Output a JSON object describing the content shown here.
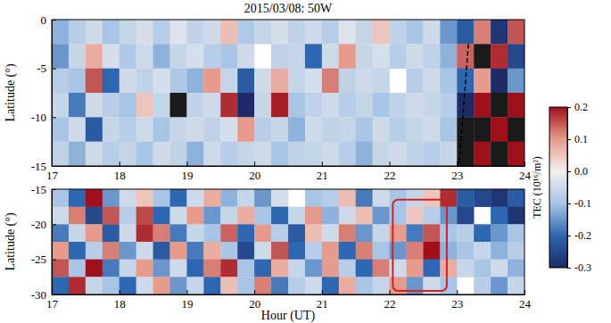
{
  "chart_data": [
    {
      "type": "heatmap",
      "title": "2015/03/08: 50W",
      "ylabel": "Latitude (°)",
      "xlim": [
        17,
        24
      ],
      "ylim": [
        -15,
        0
      ],
      "xticks": [
        17,
        18,
        19,
        20,
        21,
        22,
        23,
        24
      ],
      "yticks": [
        0,
        -5,
        -10,
        -15
      ],
      "x": [
        17.125,
        17.375,
        17.625,
        17.875,
        18.125,
        18.375,
        18.625,
        18.875,
        19.125,
        19.375,
        19.625,
        19.875,
        20.125,
        20.375,
        20.625,
        20.875,
        21.125,
        21.375,
        21.625,
        21.875,
        22.125,
        22.375,
        22.625,
        22.875,
        23.125,
        23.375,
        23.625,
        23.875
      ],
      "y": [
        -1.25,
        -3.75,
        -6.25,
        -8.75,
        -11.25,
        -13.75
      ],
      "values": [
        [
          -0.12,
          -0.08,
          -0.05,
          -0.1,
          -0.06,
          -0.04,
          -0.08,
          -0.03,
          -0.07,
          -0.05,
          0.06,
          -0.09,
          -0.06,
          -0.04,
          -0.07,
          -0.05,
          -0.08,
          -0.03,
          -0.06,
          0.05,
          -0.07,
          -0.1,
          -0.05,
          -0.15,
          -0.22,
          0.12,
          -0.28,
          0.15
        ],
        [
          -0.15,
          -0.06,
          0.08,
          -0.04,
          -0.09,
          -0.05,
          -0.12,
          -0.06,
          -0.04,
          -0.08,
          -0.1,
          -0.05,
          null,
          -0.07,
          -0.06,
          -0.2,
          -0.05,
          0.1,
          -0.06,
          -0.04,
          -0.08,
          -0.05,
          -0.07,
          -0.12,
          0.14,
          -0.35,
          0.18,
          -0.25
        ],
        [
          -0.08,
          -0.1,
          0.15,
          -0.2,
          -0.05,
          -0.07,
          -0.04,
          -0.09,
          -0.12,
          0.1,
          -0.06,
          -0.22,
          -0.05,
          0.08,
          -0.06,
          -0.04,
          0.12,
          -0.07,
          -0.05,
          -0.06,
          null,
          -0.08,
          -0.05,
          -0.1,
          -0.2,
          0.1,
          -0.3,
          -0.15
        ],
        [
          -0.06,
          -0.18,
          -0.05,
          -0.08,
          -0.1,
          0.05,
          -0.06,
          -0.35,
          -0.07,
          -0.05,
          0.18,
          -0.3,
          -0.06,
          0.19,
          -0.1,
          -0.07,
          -0.05,
          -0.08,
          -0.06,
          -0.1,
          -0.07,
          -0.05,
          -0.06,
          -0.08,
          -0.3,
          0.2,
          0.25,
          0.2
        ],
        [
          -0.1,
          -0.05,
          -0.22,
          -0.06,
          -0.08,
          -0.05,
          -0.1,
          -0.06,
          -0.05,
          -0.07,
          -0.04,
          0.1,
          -0.08,
          -0.06,
          -0.12,
          -0.05,
          -0.07,
          -0.06,
          -0.1,
          -0.05,
          -0.08,
          -0.06,
          -0.05,
          -0.1,
          -0.35,
          0.25,
          0.2,
          0.25
        ],
        [
          -0.07,
          -0.12,
          -0.05,
          -0.08,
          -0.06,
          -0.1,
          -0.05,
          -0.07,
          -0.12,
          -0.05,
          -0.08,
          -0.06,
          -0.05,
          -0.1,
          -0.07,
          -0.06,
          -0.05,
          -0.08,
          -0.12,
          -0.06,
          -0.05,
          -0.07,
          -0.08,
          -0.06,
          0.25,
          0.2,
          -0.35,
          0.2
        ]
      ],
      "colorbar": {
        "label": "TEC (10¹⁶/m²)",
        "range": [
          -0.3,
          0.2
        ],
        "ticks": [
          -0.3,
          -0.2,
          -0.1,
          {
            "value": 0,
            "label": "0.0"
          },
          0.1,
          0.2
        ]
      },
      "annotations": [
        {
          "type": "line",
          "x": [
            23.17,
            23.03
          ],
          "y": [
            -2.5,
            -15
          ],
          "line_style": "dashed",
          "color": "#000000"
        }
      ]
    },
    {
      "type": "heatmap",
      "xlabel": "Hour (UT)",
      "ylabel": "Latitude (°)",
      "xlim": [
        17,
        24
      ],
      "ylim": [
        -30,
        -15
      ],
      "xticks": [
        17,
        18,
        19,
        20,
        21,
        22,
        23,
        24
      ],
      "yticks": [
        -15,
        -20,
        -25,
        -30
      ],
      "x": [
        17.125,
        17.375,
        17.625,
        17.875,
        18.125,
        18.375,
        18.625,
        18.875,
        19.125,
        19.375,
        19.625,
        19.875,
        20.125,
        20.375,
        20.625,
        20.875,
        21.125,
        21.375,
        21.625,
        21.875,
        22.125,
        22.375,
        22.625,
        22.875,
        23.125,
        23.375,
        23.625,
        23.875
      ],
      "y": [
        -16.25,
        -18.75,
        -21.25,
        -23.75,
        -26.25,
        -28.75
      ],
      "values": [
        [
          -0.1,
          -0.2,
          0.2,
          -0.15,
          -0.05,
          0.05,
          -0.1,
          -0.2,
          -0.05,
          0.08,
          -0.12,
          -0.06,
          -0.15,
          -0.04,
          null,
          -0.1,
          -0.08,
          0.06,
          -0.18,
          -0.05,
          -0.1,
          -0.06,
          0.05,
          0.18,
          -0.22,
          -0.25,
          -0.28,
          -0.22
        ],
        [
          -0.05,
          0.12,
          -0.25,
          0.15,
          -0.08,
          0.16,
          -0.2,
          -0.05,
          0.1,
          -0.15,
          -0.06,
          0.08,
          -0.1,
          -0.2,
          -0.06,
          0.1,
          -0.12,
          -0.05,
          0.06,
          -0.15,
          -0.1,
          0.05,
          -0.08,
          -0.15,
          -0.25,
          null,
          -0.2,
          -0.28
        ],
        [
          -0.18,
          -0.06,
          0.1,
          -0.22,
          -0.05,
          0.18,
          0.12,
          -0.18,
          -0.06,
          -0.1,
          0.14,
          -0.2,
          0.1,
          -0.08,
          -0.22,
          0.06,
          -0.05,
          0.12,
          -0.15,
          -0.06,
          0.1,
          -0.18,
          0.15,
          -0.1,
          -0.08,
          -0.2,
          -0.15,
          -0.1
        ],
        [
          0.1,
          -0.2,
          -0.08,
          0.12,
          -0.15,
          -0.05,
          -0.22,
          0.1,
          -0.18,
          0.08,
          -0.1,
          -0.25,
          -0.05,
          0.15,
          -0.2,
          -0.08,
          0.1,
          -0.2,
          0.12,
          -0.1,
          -0.15,
          0.12,
          0.2,
          -0.12,
          -0.1,
          -0.06,
          -0.12,
          -0.08
        ],
        [
          0.15,
          -0.1,
          0.2,
          -0.18,
          -0.06,
          0.1,
          -0.15,
          -0.05,
          -0.2,
          0.12,
          0.18,
          -0.1,
          -0.2,
          0.08,
          -0.06,
          -0.15,
          0.1,
          -0.08,
          -0.2,
          0.12,
          -0.05,
          0.1,
          -0.2,
          0.08,
          -0.06,
          -0.1,
          -0.05,
          -0.12
        ],
        [
          -0.2,
          0.18,
          -0.06,
          -0.1,
          -0.2,
          -0.05,
          0.1,
          -0.15,
          -0.06,
          -0.2,
          0.06,
          -0.1,
          0.12,
          -0.18,
          -0.08,
          -0.05,
          -0.2,
          0.08,
          -0.1,
          -0.06,
          0.1,
          -0.15,
          -0.05,
          -0.1,
          null,
          -0.08,
          -0.15,
          -0.06
        ]
      ],
      "annotations": [
        {
          "type": "rect",
          "x": [
            22.05,
            22.85
          ],
          "y": [
            -29.5,
            -16.5
          ],
          "color": "#d42020"
        }
      ]
    }
  ]
}
